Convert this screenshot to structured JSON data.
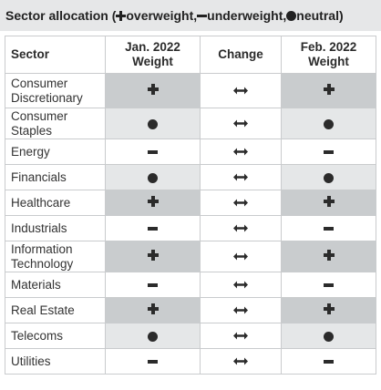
{
  "title": {
    "prefix": "Sector allocation (",
    "overweight": " overweight, ",
    "underweight": "underweight, ",
    "neutral": " neutral)"
  },
  "table": {
    "headers": {
      "sector": "Sector",
      "jan": "Jan. 2022 Weight",
      "change": "Change",
      "feb": "Feb. 2022 Weight"
    },
    "rows": [
      {
        "sector": "Consumer Discretionary",
        "jan": "plus",
        "change": "both-arrow",
        "feb": "plus"
      },
      {
        "sector": "Consumer Staples",
        "jan": "dot",
        "change": "both-arrow",
        "feb": "dot"
      },
      {
        "sector": "Energy",
        "jan": "minus",
        "change": "both-arrow",
        "feb": "minus"
      },
      {
        "sector": "Financials",
        "jan": "dot",
        "change": "both-arrow",
        "feb": "dot"
      },
      {
        "sector": "Healthcare",
        "jan": "plus",
        "change": "both-arrow",
        "feb": "plus"
      },
      {
        "sector": "Industrials",
        "jan": "minus",
        "change": "both-arrow",
        "feb": "minus"
      },
      {
        "sector": "Information Technology",
        "jan": "plus",
        "change": "both-arrow",
        "feb": "plus"
      },
      {
        "sector": "Materials",
        "jan": "minus",
        "change": "both-arrow",
        "feb": "minus"
      },
      {
        "sector": "Real Estate",
        "jan": "plus",
        "change": "both-arrow",
        "feb": "plus"
      },
      {
        "sector": "Telecoms",
        "jan": "dot",
        "change": "both-arrow",
        "feb": "dot"
      },
      {
        "sector": "Utilities",
        "jan": "minus",
        "change": "both-arrow",
        "feb": "minus"
      }
    ]
  },
  "legend_icons": {
    "plus": "plus-icon",
    "minus": "minus-icon",
    "dot": "dot-icon",
    "both-arrow": "double-arrow-icon"
  },
  "colors": {
    "overweight_shade": "#c9ccce",
    "neutral_shade": "#e5e7e8",
    "title_bar": "#e6e7e8"
  }
}
